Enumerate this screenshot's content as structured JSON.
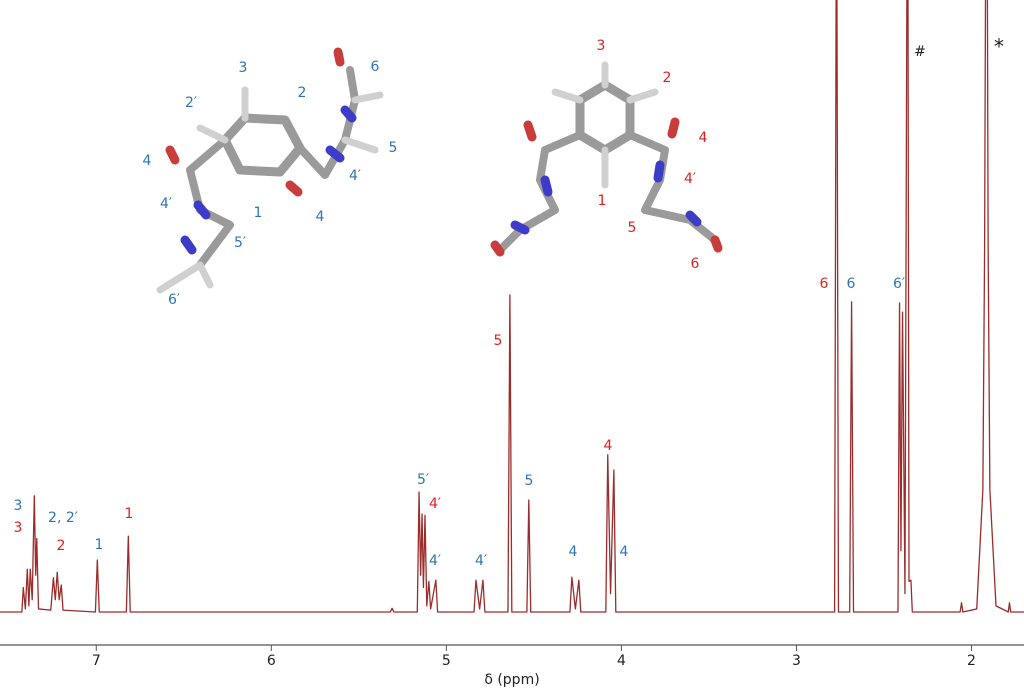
{
  "chart_data": {
    "type": "line",
    "xlabel": "δ (ppm)",
    "color": "#9b2c2c",
    "xlim": [
      7.55,
      1.7
    ],
    "ylim": [
      0,
      100
    ],
    "xticks": [
      7,
      6,
      5,
      4,
      3,
      2
    ],
    "x": [
      7.55,
      7.425,
      7.417,
      7.405,
      7.394,
      7.385,
      7.377,
      7.366,
      7.354,
      7.346,
      7.34,
      7.33,
      7.26,
      7.245,
      7.234,
      7.223,
      7.212,
      7.2,
      7.19,
      7.005,
      6.994,
      6.983,
      6.828,
      6.817,
      6.806,
      5.32,
      5.31,
      5.3,
      5.166,
      5.156,
      5.147,
      5.139,
      5.131,
      5.122,
      5.112,
      5.1,
      5.09,
      5.06,
      5.05,
      4.842,
      4.831,
      4.81,
      4.791,
      4.78,
      4.648,
      4.637,
      4.626,
      4.54,
      4.529,
      4.518,
      4.294,
      4.283,
      4.263,
      4.243,
      4.232,
      4.089,
      4.078,
      4.062,
      4.043,
      4.032,
      2.782,
      2.771,
      2.76,
      2.696,
      2.685,
      2.674,
      2.42,
      2.411,
      2.403,
      2.394,
      2.38,
      2.365,
      2.357,
      2.346,
      2.338,
      2.065,
      2.057,
      2.049,
      1.97,
      1.935,
      1.925,
      1.914,
      1.905,
      1.895,
      1.86,
      1.79,
      1.783,
      1.776,
      1.7
    ],
    "values": [
      0,
      0,
      4,
      0.5,
      7,
      1,
      7,
      2,
      19,
      6,
      12,
      0.5,
      0.3,
      5.6,
      2,
      6.5,
      2,
      4.4,
      0.3,
      0,
      8.5,
      0,
      0,
      12.4,
      0,
      0,
      0.6,
      0,
      0,
      19.6,
      6,
      16,
      4,
      15.8,
      1,
      5,
      0.5,
      5.2,
      0,
      0,
      5.2,
      0.5,
      5.2,
      0,
      0,
      51.8,
      0,
      0,
      18.3,
      0,
      0,
      5.7,
      0.5,
      5.2,
      0,
      0,
      25.7,
      3,
      23.2,
      0,
      0,
      130,
      0,
      0,
      50.7,
      0,
      0,
      50.5,
      10,
      49,
      3,
      140,
      5,
      5.2,
      0,
      0,
      1.5,
      0,
      0.5,
      20,
      60,
      150,
      60,
      20,
      1,
      0,
      1.5,
      0,
      0
    ],
    "annotations": [
      {
        "text": "3",
        "color": "#2e75b6"
      },
      {
        "text": "2′",
        "color": "#2e75b6"
      },
      {
        "text": "2",
        "color": "#2e75b6"
      },
      {
        "text": "4",
        "color": "#2e75b6"
      },
      {
        "text": "4′",
        "color": "#2e75b6"
      },
      {
        "text": "1",
        "color": "#2e75b6"
      },
      {
        "text": "5′",
        "color": "#2e75b6"
      },
      {
        "text": "6′",
        "color": "#2e75b6"
      },
      {
        "text": "6",
        "color": "#2e75b6"
      },
      {
        "text": "5",
        "color": "#2e75b6"
      },
      {
        "text": "4′",
        "color": "#2e75b6"
      },
      {
        "text": "4",
        "color": "#2e75b6"
      },
      {
        "text": "3",
        "color": "#e02020"
      },
      {
        "text": "2",
        "color": "#e02020"
      },
      {
        "text": "4",
        "color": "#e02020"
      },
      {
        "text": "4′",
        "color": "#e02020"
      },
      {
        "text": "1",
        "color": "#e02020"
      },
      {
        "text": "5",
        "color": "#e02020"
      },
      {
        "text": "6",
        "color": "#e02020"
      },
      {
        "text": "3",
        "color": "#2e75b6"
      },
      {
        "text": "3",
        "color": "#e02020"
      },
      {
        "text": "2, 2′",
        "color": "#2e75b6"
      },
      {
        "text": "2",
        "color": "#e02020"
      },
      {
        "text": "1",
        "color": "#2e75b6"
      },
      {
        "text": "1",
        "color": "#e02020"
      },
      {
        "text": "5′",
        "color": "#2e75b6"
      },
      {
        "text": "4′",
        "color": "#e02020"
      },
      {
        "text": "4′",
        "color": "#2e75b6"
      },
      {
        "text": "4′",
        "color": "#2e75b6"
      },
      {
        "text": "5",
        "color": "#e02020"
      },
      {
        "text": "5",
        "color": "#2e75b6"
      },
      {
        "text": "4",
        "color": "#2e75b6"
      },
      {
        "text": "4",
        "color": "#2e75b6"
      },
      {
        "text": "4",
        "color": "#e02020"
      },
      {
        "text": "6",
        "color": "#e02020"
      },
      {
        "text": "6",
        "color": "#2e75b6"
      },
      {
        "text": "6′",
        "color": "#2e75b6"
      },
      {
        "text": "#",
        "color": "#222222"
      },
      {
        "text": "*",
        "color": "#222222"
      }
    ]
  }
}
